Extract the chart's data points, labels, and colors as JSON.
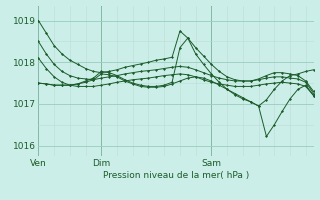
{
  "bg_color": "#cceee8",
  "grid_major_color": "#99ccbb",
  "grid_minor_color": "#bbddd5",
  "line_color": "#1a5c2a",
  "title": "Pression niveau de la mer( hPa )",
  "ylim": [
    1015.75,
    1019.35
  ],
  "yticks": [
    1016,
    1017,
    1018,
    1019
  ],
  "xtick_labels": [
    "Ven",
    "Dim",
    "Sam"
  ],
  "xtick_positions": [
    0,
    8,
    22
  ],
  "total_points": 36,
  "series": [
    [
      1019.0,
      1018.7,
      1018.4,
      1018.2,
      1018.05,
      1017.95,
      1017.85,
      1017.78,
      1017.75,
      1017.78,
      1017.82,
      1017.88,
      1017.92,
      1017.96,
      1018.0,
      1018.05,
      1018.08,
      1018.12,
      1018.75,
      1018.58,
      1018.35,
      1018.15,
      1017.95,
      1017.78,
      1017.65,
      1017.58,
      1017.55,
      1017.55,
      1017.6,
      1017.68,
      1017.75,
      1017.75,
      1017.72,
      1017.68,
      1017.55,
      1017.3
    ],
    [
      1018.5,
      1018.2,
      1017.95,
      1017.78,
      1017.68,
      1017.62,
      1017.6,
      1017.58,
      1017.62,
      1017.65,
      1017.68,
      1017.72,
      1017.75,
      1017.78,
      1017.8,
      1017.82,
      1017.85,
      1017.88,
      1017.9,
      1017.88,
      1017.82,
      1017.75,
      1017.68,
      1017.62,
      1017.58,
      1017.55,
      1017.55,
      1017.55,
      1017.58,
      1017.62,
      1017.65,
      1017.65,
      1017.62,
      1017.6,
      1017.52,
      1017.25
    ],
    [
      1018.1,
      1017.85,
      1017.65,
      1017.52,
      1017.45,
      1017.42,
      1017.42,
      1017.42,
      1017.45,
      1017.48,
      1017.52,
      1017.55,
      1017.58,
      1017.6,
      1017.62,
      1017.65,
      1017.68,
      1017.7,
      1017.72,
      1017.7,
      1017.65,
      1017.58,
      1017.52,
      1017.48,
      1017.45,
      1017.42,
      1017.42,
      1017.42,
      1017.45,
      1017.48,
      1017.5,
      1017.52,
      1017.5,
      1017.48,
      1017.42,
      1017.2
    ],
    [
      1017.5,
      1017.48,
      1017.45,
      1017.45,
      1017.45,
      1017.48,
      1017.55,
      1017.62,
      1017.78,
      1017.75,
      1017.68,
      1017.58,
      1017.5,
      1017.45,
      1017.42,
      1017.42,
      1017.45,
      1017.52,
      1018.35,
      1018.58,
      1018.2,
      1017.95,
      1017.72,
      1017.52,
      1017.35,
      1017.22,
      1017.12,
      1017.05,
      1016.95,
      1017.1,
      1017.35,
      1017.55,
      1017.68,
      1017.72,
      1017.78,
      1017.82
    ],
    [
      1017.5,
      1017.48,
      1017.45,
      1017.45,
      1017.45,
      1017.48,
      1017.52,
      1017.58,
      1017.72,
      1017.7,
      1017.65,
      1017.55,
      1017.48,
      1017.42,
      1017.4,
      1017.4,
      1017.42,
      1017.48,
      1017.55,
      1017.62,
      1017.65,
      1017.62,
      1017.55,
      1017.45,
      1017.35,
      1017.25,
      1017.15,
      1017.05,
      1016.95,
      1016.22,
      1016.5,
      1016.82,
      1017.12,
      1017.35,
      1017.45,
      1017.2
    ]
  ]
}
